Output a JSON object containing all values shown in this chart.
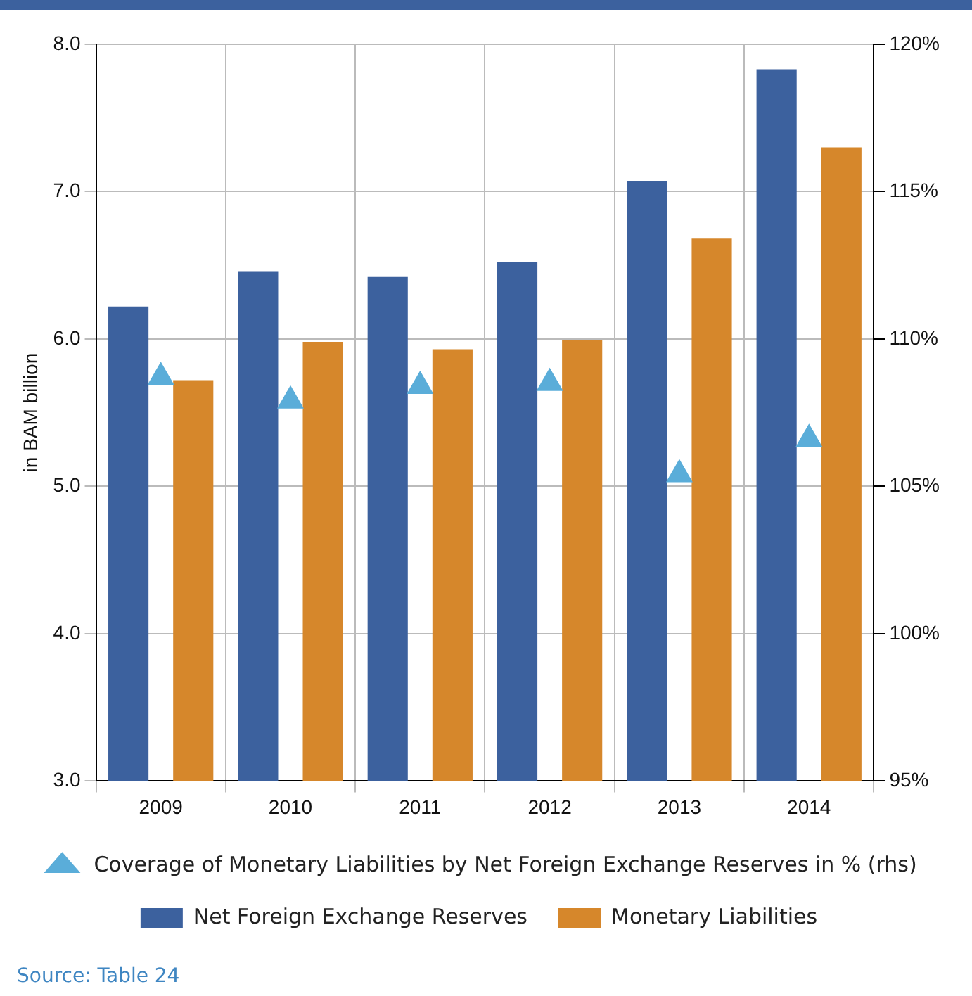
{
  "chart_data": {
    "type": "bar",
    "ylabel": "in BAM billion",
    "categories": [
      "2009",
      "2010",
      "2011",
      "2012",
      "2013",
      "2014"
    ],
    "series": [
      {
        "name": "Net Foreign Exchange Reserves",
        "color": "#3c619e",
        "values": [
          6.22,
          6.46,
          6.42,
          6.52,
          7.07,
          7.83
        ]
      },
      {
        "name": "Monetary Liabilities",
        "color": "#d6872b",
        "values": [
          5.72,
          5.98,
          5.93,
          5.99,
          6.68,
          7.3
        ]
      },
      {
        "name": "Coverage of Monetary Liabilities by Net Foreign Exchange Reserves in % (rhs)",
        "type": "scatter",
        "axis": "y2",
        "marker": "triangle",
        "color": "#5aadd9",
        "values": [
          108.7,
          107.9,
          108.4,
          108.5,
          105.4,
          106.6
        ]
      }
    ],
    "ylim": [
      3,
      8
    ],
    "yticks": [
      {
        "value": 3,
        "label": "3.0"
      },
      {
        "value": 4,
        "label": "4.0"
      },
      {
        "value": 5,
        "label": "5.0"
      },
      {
        "value": 6,
        "label": "6.0"
      },
      {
        "value": 7,
        "label": "7.0"
      },
      {
        "value": 8,
        "label": "8.0"
      }
    ],
    "y2lim": [
      95,
      120
    ],
    "y2ticks": [
      {
        "value": 95,
        "label": "95%"
      },
      {
        "value": 100,
        "label": "100%"
      },
      {
        "value": 105,
        "label": "105%"
      },
      {
        "value": 110,
        "label": "110%"
      },
      {
        "value": 115,
        "label": "115%"
      },
      {
        "value": 120,
        "label": "120%"
      }
    ],
    "grid": true,
    "legend": "bottom",
    "annotations": [
      "Source: Table 24"
    ]
  }
}
